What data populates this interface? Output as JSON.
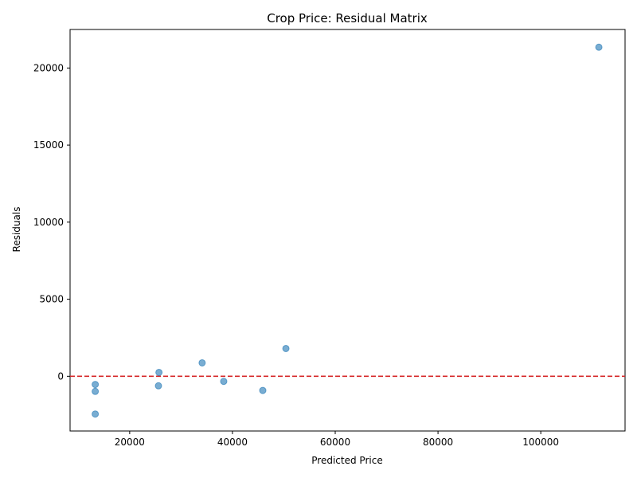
{
  "chart_data": {
    "type": "scatter",
    "title": "Crop Price: Residual Matrix",
    "xlabel": "Predicted Price",
    "ylabel": "Residuals",
    "xlim": [
      8400,
      116400
    ],
    "ylim": [
      -3550,
      22500
    ],
    "xticks": [
      20000,
      40000,
      60000,
      80000,
      100000
    ],
    "yticks": [
      0,
      5000,
      10000,
      15000,
      20000
    ],
    "grid": false,
    "reference_line": {
      "y": 0,
      "color": "#d62728",
      "style": "dashed"
    },
    "point_color": "#1f77b4",
    "point_alpha": 0.6,
    "points": [
      {
        "x": 111300,
        "y": 21350
      },
      {
        "x": 50400,
        "y": 1800
      },
      {
        "x": 34100,
        "y": 870
      },
      {
        "x": 25700,
        "y": 250
      },
      {
        "x": 38300,
        "y": -330
      },
      {
        "x": 13300,
        "y": -530
      },
      {
        "x": 25600,
        "y": -620
      },
      {
        "x": 13300,
        "y": -980
      },
      {
        "x": 45900,
        "y": -920
      },
      {
        "x": 13300,
        "y": -2450
      }
    ]
  }
}
